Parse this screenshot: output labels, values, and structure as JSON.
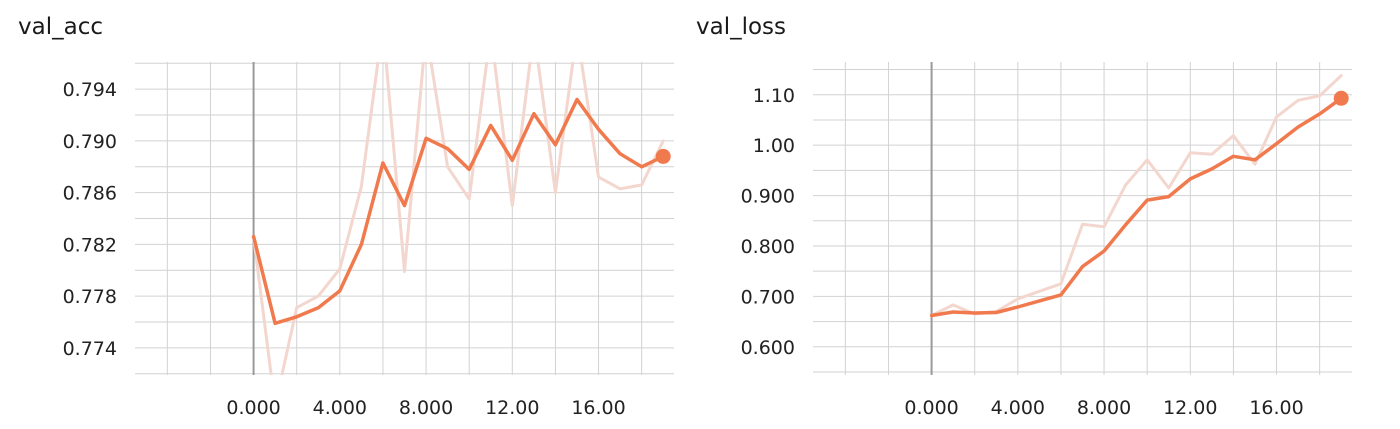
{
  "colors": {
    "smooth": "#f07a4d",
    "raw": "#f3d6ce",
    "grid": "#d2d2d2",
    "zero_axis": "#9a9a9a"
  },
  "chart_data": [
    {
      "type": "line",
      "title": "val_acc",
      "xlabel": "",
      "ylabel": "",
      "xlim": [
        -5.5,
        19.5
      ],
      "ylim": [
        0.7719,
        0.7961
      ],
      "x_ticks": [
        "0.000",
        "4.000",
        "8.000",
        "12.00",
        "16.00"
      ],
      "x_tick_values": [
        0,
        4,
        8,
        12,
        16
      ],
      "y_ticks": [
        "0.774",
        "0.778",
        "0.782",
        "0.786",
        "0.790",
        "0.794"
      ],
      "y_tick_values": [
        0.774,
        0.778,
        0.782,
        0.786,
        0.79,
        0.794
      ],
      "grid": true,
      "series": [
        {
          "role": "raw",
          "x": [
            0,
            1,
            2,
            3,
            4,
            5,
            6,
            7,
            8,
            9,
            10,
            11,
            12,
            13,
            14,
            15,
            16,
            17,
            18,
            19
          ],
          "values": [
            0.7826,
            0.7695,
            0.7771,
            0.778,
            0.7801,
            0.7865,
            0.799,
            0.7799,
            0.7985,
            0.788,
            0.7855,
            0.7985,
            0.785,
            0.7985,
            0.786,
            0.7985,
            0.7872,
            0.7863,
            0.7866,
            0.79
          ]
        },
        {
          "role": "smoothed",
          "x": [
            0,
            1,
            2,
            3,
            4,
            5,
            6,
            7,
            8,
            9,
            10,
            11,
            12,
            13,
            14,
            15,
            16,
            17,
            18,
            19
          ],
          "values": [
            0.7826,
            0.7759,
            0.7764,
            0.7771,
            0.7784,
            0.782,
            0.7883,
            0.785,
            0.7902,
            0.7894,
            0.7878,
            0.7912,
            0.7885,
            0.7921,
            0.7897,
            0.7932,
            0.7909,
            0.789,
            0.788,
            0.7888
          ]
        }
      ]
    },
    {
      "type": "line",
      "title": "val_loss",
      "xlabel": "",
      "ylabel": "",
      "xlim": [
        -5.5,
        19.5
      ],
      "ylim": [
        0.544,
        1.165
      ],
      "x_ticks": [
        "0.000",
        "4.000",
        "8.000",
        "12.00",
        "16.00"
      ],
      "x_tick_values": [
        0,
        4,
        8,
        12,
        16
      ],
      "y_ticks": [
        "0.600",
        "0.700",
        "0.800",
        "0.900",
        "1.00",
        "1.10"
      ],
      "y_tick_values": [
        0.6,
        0.7,
        0.8,
        0.9,
        1.0,
        1.1
      ],
      "grid": true,
      "series": [
        {
          "role": "raw",
          "x": [
            0,
            1,
            2,
            3,
            4,
            5,
            6,
            7,
            8,
            9,
            10,
            11,
            12,
            13,
            14,
            15,
            16,
            17,
            18,
            19
          ],
          "values": [
            0.662,
            0.683,
            0.665,
            0.67,
            0.695,
            0.71,
            0.725,
            0.843,
            0.838,
            0.921,
            0.971,
            0.915,
            0.985,
            0.982,
            1.019,
            0.962,
            1.056,
            1.089,
            1.098,
            1.138
          ]
        },
        {
          "role": "smoothed",
          "x": [
            0,
            1,
            2,
            3,
            4,
            5,
            6,
            7,
            8,
            9,
            10,
            11,
            12,
            13,
            14,
            15,
            16,
            17,
            18,
            19
          ],
          "values": [
            0.662,
            0.669,
            0.667,
            0.668,
            0.679,
            0.691,
            0.703,
            0.759,
            0.79,
            0.842,
            0.891,
            0.898,
            0.933,
            0.953,
            0.978,
            0.971,
            1.003,
            1.036,
            1.062,
            1.093
          ]
        }
      ]
    }
  ]
}
